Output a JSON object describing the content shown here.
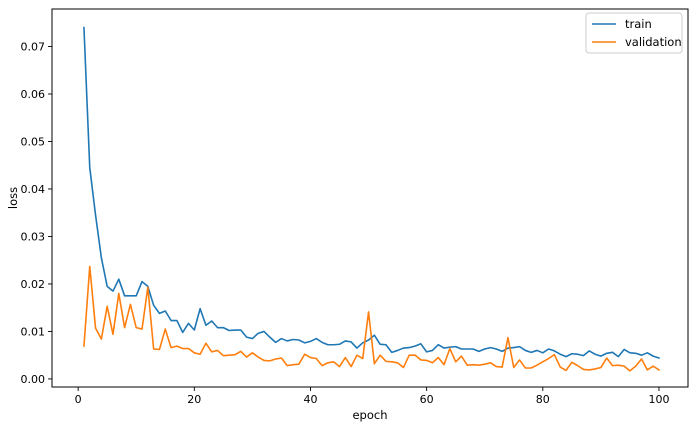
{
  "chart_data": {
    "type": "line",
    "xlabel": "epoch",
    "ylabel": "loss",
    "xlim": [
      -4.5,
      105
    ],
    "ylim": [
      -0.0017,
      0.0779
    ],
    "xticks": [
      0,
      20,
      40,
      60,
      80,
      100
    ],
    "yticks": [
      0.0,
      0.01,
      0.02,
      0.03,
      0.04,
      0.05,
      0.06,
      0.07
    ],
    "xtick_labels": [
      "0",
      "20",
      "40",
      "60",
      "80",
      "100"
    ],
    "ytick_labels": [
      "0.00",
      "0.01",
      "0.02",
      "0.03",
      "0.04",
      "0.05",
      "0.06",
      "0.07"
    ],
    "grid": false,
    "legend_position": "top-right",
    "x": [
      1,
      2,
      3,
      4,
      5,
      6,
      7,
      8,
      9,
      10,
      11,
      12,
      13,
      14,
      15,
      16,
      17,
      18,
      19,
      20,
      21,
      22,
      23,
      24,
      25,
      26,
      27,
      28,
      29,
      30,
      31,
      32,
      33,
      34,
      35,
      36,
      37,
      38,
      39,
      40,
      41,
      42,
      43,
      44,
      45,
      46,
      47,
      48,
      49,
      50,
      51,
      52,
      53,
      54,
      55,
      56,
      57,
      58,
      59,
      60,
      61,
      62,
      63,
      64,
      65,
      66,
      67,
      68,
      69,
      70,
      71,
      72,
      73,
      74,
      75,
      76,
      77,
      78,
      79,
      80,
      81,
      82,
      83,
      84,
      85,
      86,
      87,
      88,
      89,
      90,
      91,
      92,
      93,
      94,
      95,
      96,
      97,
      98,
      99,
      100
    ],
    "series": [
      {
        "name": "train",
        "color": "#1f77b4",
        "values": [
          0.074,
          0.0445,
          0.0345,
          0.0255,
          0.0195,
          0.0185,
          0.021,
          0.0175,
          0.0175,
          0.0175,
          0.0205,
          0.0195,
          0.0155,
          0.0138,
          0.0143,
          0.0123,
          0.0123,
          0.0098,
          0.0117,
          0.0103,
          0.0148,
          0.0113,
          0.0122,
          0.0108,
          0.0108,
          0.0102,
          0.0103,
          0.0103,
          0.0088,
          0.0085,
          0.0096,
          0.01,
          0.0088,
          0.0077,
          0.0085,
          0.008,
          0.0083,
          0.0082,
          0.0076,
          0.0079,
          0.0085,
          0.0077,
          0.0072,
          0.0072,
          0.0073,
          0.008,
          0.0078,
          0.0065,
          0.0076,
          0.0082,
          0.0092,
          0.0073,
          0.0072,
          0.0056,
          0.006,
          0.0065,
          0.0066,
          0.0069,
          0.0074,
          0.0057,
          0.006,
          0.0072,
          0.0065,
          0.0067,
          0.0068,
          0.0063,
          0.0063,
          0.0063,
          0.0058,
          0.0063,
          0.0066,
          0.0063,
          0.0058,
          0.0065,
          0.0066,
          0.0068,
          0.006,
          0.0056,
          0.006,
          0.0055,
          0.0063,
          0.0059,
          0.0052,
          0.0047,
          0.0053,
          0.0052,
          0.0049,
          0.0059,
          0.0052,
          0.0048,
          0.0054,
          0.0056,
          0.0047,
          0.0062,
          0.0055,
          0.0054,
          0.005,
          0.0055,
          0.0048,
          0.0044
        ]
      },
      {
        "name": "validation",
        "color": "#ff7f0e",
        "values": [
          0.0069,
          0.0237,
          0.0107,
          0.0084,
          0.0153,
          0.0094,
          0.018,
          0.0108,
          0.0157,
          0.0108,
          0.0105,
          0.0193,
          0.0063,
          0.0062,
          0.0105,
          0.0066,
          0.0069,
          0.0064,
          0.0064,
          0.0055,
          0.0052,
          0.0075,
          0.0057,
          0.006,
          0.0049,
          0.005,
          0.0051,
          0.0058,
          0.0046,
          0.0055,
          0.0046,
          0.0039,
          0.0038,
          0.0042,
          0.0044,
          0.0028,
          0.003,
          0.0031,
          0.0052,
          0.0045,
          0.0043,
          0.0028,
          0.0034,
          0.0036,
          0.0026,
          0.0045,
          0.0026,
          0.005,
          0.0043,
          0.0141,
          0.0032,
          0.005,
          0.0037,
          0.0036,
          0.0034,
          0.0024,
          0.005,
          0.005,
          0.004,
          0.0039,
          0.0034,
          0.0045,
          0.003,
          0.0064,
          0.0036,
          0.0048,
          0.0029,
          0.003,
          0.0029,
          0.0031,
          0.0034,
          0.0026,
          0.0025,
          0.0087,
          0.0024,
          0.004,
          0.0023,
          0.0023,
          0.0029,
          0.0036,
          0.0043,
          0.0051,
          0.0025,
          0.0018,
          0.0035,
          0.0028,
          0.002,
          0.0019,
          0.0021,
          0.0024,
          0.0044,
          0.0028,
          0.0029,
          0.0027,
          0.0017,
          0.0027,
          0.0042,
          0.0019,
          0.0027,
          0.0019
        ]
      }
    ]
  }
}
